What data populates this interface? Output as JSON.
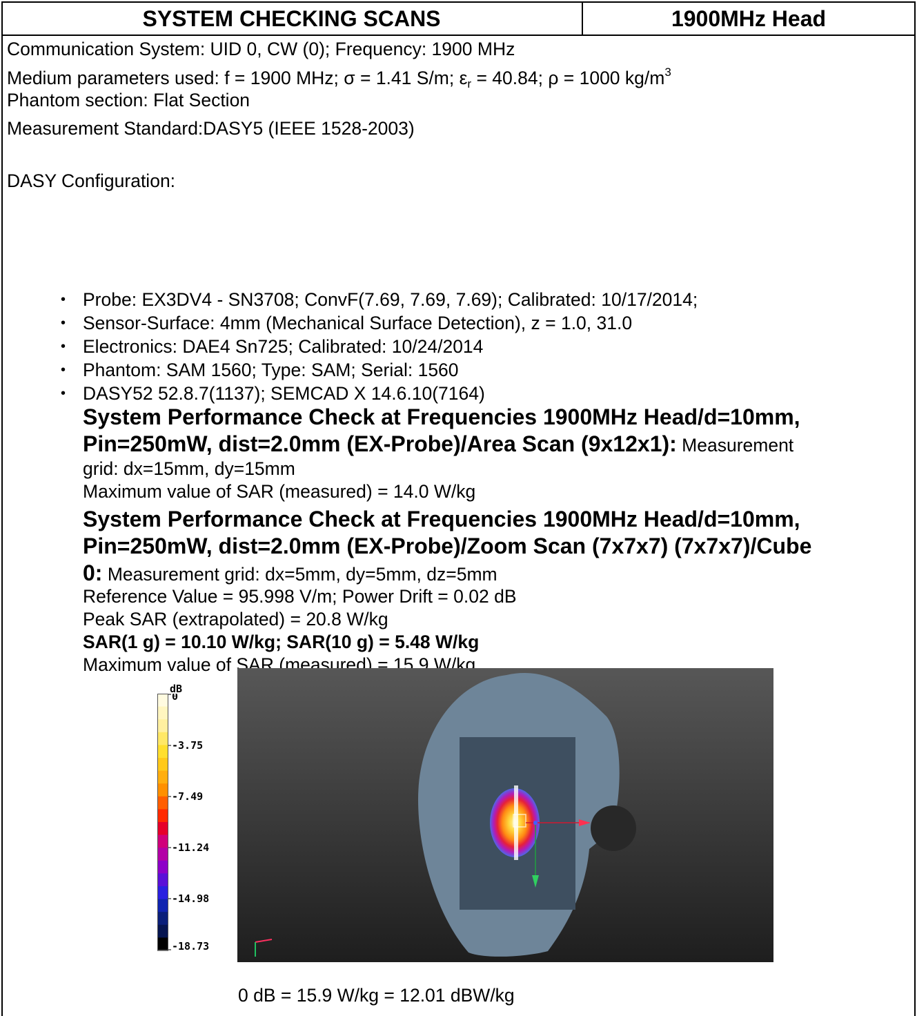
{
  "header": {
    "title": "SYSTEM CHECKING SCANS",
    "band": "1900MHz Head"
  },
  "params": {
    "communication_system": "Communication System: UID 0, CW (0); Frequency: 1900 MHz",
    "medium_prefix": "Medium parameters used: f = 1900 MHz; σ = 1.41 S/m; ε",
    "medium_sub": "r",
    "medium_mid": " = 40.84; ρ = 1000 kg/m",
    "medium_sup": "3",
    "phantom_section": "Phantom section: Flat Section",
    "measurement_standard": "Measurement Standard:DASY5 (IEEE 1528-2003)"
  },
  "dasy": {
    "heading": "DASY Configuration:",
    "items": [
      "Probe: EX3DV4 - SN3708; ConvF(7.69, 7.69, 7.69); Calibrated: 10/17/2014;",
      "Sensor-Surface: 4mm (Mechanical Surface Detection), z = 1.0, 31.0",
      "Electronics: DAE4 Sn725; Calibrated: 10/24/2014",
      "Phantom: SAM 1560; Type: SAM; Serial: 1560",
      "DASY52 52.8.7(1137); SEMCAD X 14.6.10(7164)"
    ],
    "bullet": "•"
  },
  "area_scan": {
    "title_line1": "System Performance Check at Frequencies 1900MHz Head/d=10mm,",
    "title_line2": "Pin=250mW, dist=2.0mm (EX-Probe)/Area Scan (9x12x1):",
    "grid_tail": " Measurement",
    "grid_line2": "grid: dx=15mm, dy=15mm",
    "max_sar": "Maximum value of SAR (measured) = 14.0 W/kg"
  },
  "zoom_scan": {
    "title_line1": "System Performance Check at Frequencies 1900MHz Head/d=10mm,",
    "title_line2": "Pin=250mW, dist=2.0mm (EX-Probe)/Zoom Scan (7x7x7) (7x7x7)/Cube",
    "title_line3": "0:",
    "grid": " Measurement grid: dx=5mm, dy=5mm, dz=5mm",
    "reference": "Reference Value = 95.998 V/m; Power Drift = 0.02 dB",
    "peak_sar": "Peak SAR (extrapolated) = 20.8 W/kg",
    "sar_result": "SAR(1 g) = 10.10 W/kg; SAR(10 g) = 5.48 W/kg",
    "max_sar": "Maximum value of SAR (measured) = 15.9 W/kg"
  },
  "colorbar": {
    "unit": "dB",
    "ticks": [
      "0",
      "-3.75",
      "-7.49",
      "-11.24",
      "-14.98",
      "-18.73"
    ],
    "colors": [
      "#fffbe0",
      "#fff6c0",
      "#fff0a0",
      "#ffe866",
      "#ffdf2e",
      "#ffc91a",
      "#ffae0f",
      "#ff9000",
      "#ff5e00",
      "#ff2a00",
      "#e6002a",
      "#d0007a",
      "#b300a6",
      "#8d00c8",
      "#5a10d8",
      "#2a20e0",
      "#1024b0",
      "#0a1f7a",
      "#061550",
      "#000000"
    ],
    "colors_note": "top-to-bottom color stops"
  },
  "footer": "0 dB = 15.9 W/kg = 12.01 dBW/kg"
}
